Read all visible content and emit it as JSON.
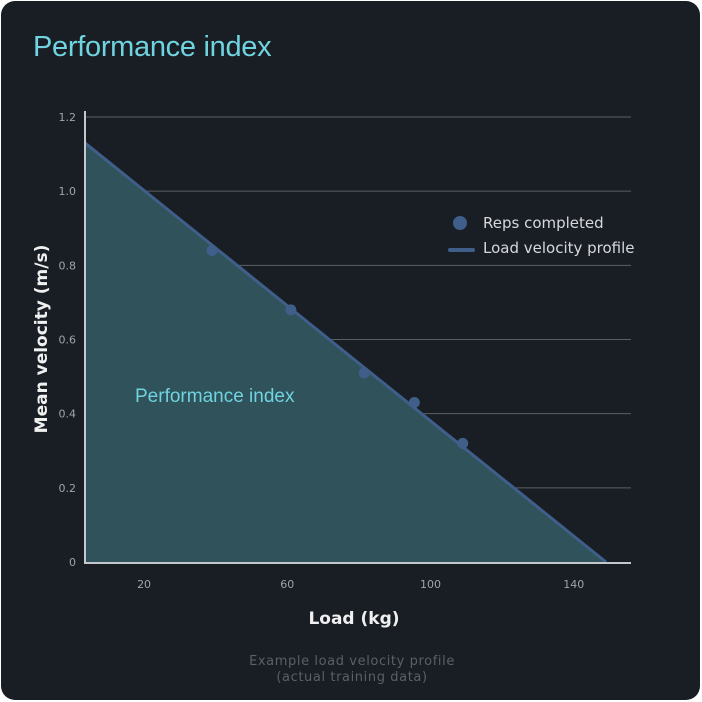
{
  "card": {
    "title": "Performance index",
    "caption_line1": "Example load velocity profile",
    "caption_line2": "(actual training data)"
  },
  "colors": {
    "background": "#191d24",
    "title": "#6fd3e0",
    "area_fill": "#30525a",
    "line": "#3f5f8a",
    "points": "#3f5f8a",
    "grid": "#5b6066",
    "axis": "#c4c8cc"
  },
  "chart_data": {
    "type": "scatter",
    "title": "Performance index",
    "xlabel": "Load (kg)",
    "ylabel": "Mean velocity (m/s)",
    "xlim": [
      3.5,
      156
    ],
    "ylim": [
      0,
      1.2
    ],
    "x_ticks": [
      20,
      60,
      100,
      140
    ],
    "x_tick_labels": [
      "20",
      "60",
      "100",
      "140"
    ],
    "y_ticks": [
      0,
      0.2,
      0.4,
      0.6,
      0.8,
      1.0,
      1.2
    ],
    "y_tick_labels": [
      "0",
      "0.2",
      "0.4",
      "0.6",
      "0.8",
      "1.0",
      "1.2"
    ],
    "grid": "horizontal",
    "legend_position": "upper right",
    "series": [
      {
        "name": "Reps completed",
        "type": "scatter",
        "x": [
          39,
          61,
          81.5,
          95.5,
          109
        ],
        "y": [
          0.84,
          0.68,
          0.51,
          0.43,
          0.32
        ]
      },
      {
        "name": "Load velocity profile",
        "type": "line",
        "x": [
          3.5,
          149
        ],
        "y": [
          1.13,
          0
        ]
      }
    ],
    "annotations": [
      {
        "text": "Performance index",
        "x": 25,
        "y": 0.44,
        "note": "label for shaded area under the load velocity profile"
      }
    ]
  },
  "legend": {
    "items": [
      {
        "label": "Reps completed",
        "marker": "circle"
      },
      {
        "label": "Load velocity profile",
        "marker": "line"
      }
    ]
  }
}
